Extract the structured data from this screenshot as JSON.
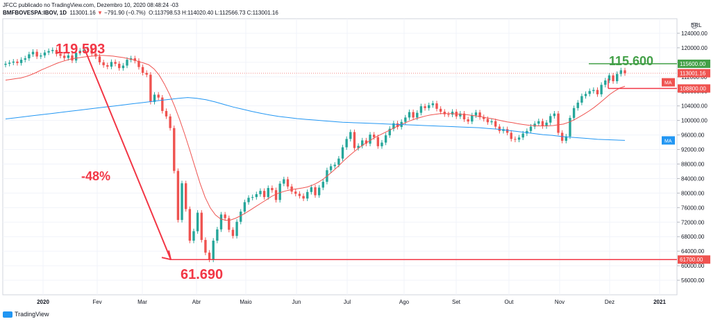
{
  "header": {
    "line1": "JFCC publicado no TradingView.com, Dezembro 10, 2020 08:48:24 -03",
    "symbol": "BMFBOVESPA:IBOV, 1D",
    "last": "113001.16",
    "change_arrow": "▼",
    "change": "−791.90 (−0.7%)",
    "ohlc": "O:113798.53 H:114020.40 L:112566.73 C:113001.16"
  },
  "brand": {
    "label": "TradingView"
  },
  "colors": {
    "up": "#26a69a",
    "down": "#ef5350",
    "ma_fast": "#ef5350",
    "ma_slow": "#2196f3",
    "annot_red": "#f23645",
    "annot_green": "#43a047"
  },
  "chart_data": {
    "type": "candlestick",
    "currency": "BRL",
    "y_ticks": [
      56000,
      60000,
      64000,
      68000,
      72000,
      76000,
      80000,
      84000,
      88000,
      92000,
      96000,
      100000,
      104000,
      108000,
      112000,
      116000,
      120000,
      124000
    ],
    "ylim": [
      52000,
      128000
    ],
    "x_labels": [
      "2020",
      "Fev",
      "Mar",
      "Abr",
      "Maio",
      "Jun",
      "Jul",
      "Ago",
      "Set",
      "Out",
      "Nov",
      "Dez",
      "2021"
    ],
    "price_tags": [
      {
        "label": "115600.00",
        "value": 115600,
        "color": "#43a047"
      },
      {
        "label": "113001.16",
        "value": 113001,
        "color": "#ef5350"
      },
      {
        "label": "108800.00",
        "value": 108800,
        "color": "#ef5350"
      },
      {
        "label": "61700.00",
        "value": 61700,
        "color": "#ef5350"
      }
    ],
    "ma_tags": [
      {
        "label": "MA",
        "value": 110500,
        "color": "#ef5350"
      },
      {
        "label": "MA",
        "value": 94500,
        "color": "#2196f3"
      }
    ],
    "annotations": {
      "high": "119.593",
      "low": "61.690",
      "drop": "-48%",
      "target": "115.600"
    },
    "closes": [
      115600,
      115900,
      116200,
      115800,
      116700,
      117100,
      118200,
      118900,
      117600,
      117900,
      118700,
      119100,
      119400,
      118300,
      117800,
      117200,
      117900,
      116500,
      118600,
      119200,
      119500,
      119600,
      118400,
      117600,
      116000,
      115200,
      114800,
      116100,
      115600,
      114400,
      115100,
      116700,
      117100,
      116400,
      114700,
      113100,
      112600,
      105100,
      107100,
      106300,
      102600,
      101100,
      97900,
      86100,
      72600,
      82700,
      75600,
      66900,
      69500,
      74600,
      67100,
      63600,
      61700,
      66900,
      70000,
      74100,
      73100,
      69900,
      68200,
      72100,
      74900,
      77500,
      78700,
      78900,
      79700,
      80600,
      78900,
      81400,
      80800,
      78100,
      82600,
      83800,
      81800,
      80400,
      79800,
      79200,
      78500,
      80300,
      81600,
      79400,
      81500,
      83100,
      86300,
      87400,
      87800,
      89500,
      92600,
      94900,
      96800,
      92400,
      93000,
      94500,
      93600,
      96100,
      95400,
      92900,
      93900,
      95900,
      97700,
      99200,
      98200,
      99600,
      100800,
      102300,
      100800,
      102100,
      103900,
      103400,
      104200,
      104700,
      103200,
      102400,
      101700,
      101600,
      102400,
      101100,
      101900,
      100300,
      99700,
      101400,
      102200,
      100900,
      100400,
      99500,
      99800,
      98300,
      97100,
      97600,
      96600,
      94900,
      94700,
      95300,
      96400,
      97100,
      98300,
      99100,
      99800,
      98400,
      99400,
      101200,
      101900,
      96600,
      94400,
      95600,
      100700,
      103400,
      104900,
      106700,
      107300,
      108100,
      108400,
      107200,
      109800,
      111000,
      112400,
      110800,
      112800,
      113800,
      113000
    ],
    "ma_fast": [
      111100,
      111300,
      111500,
      111700,
      112100,
      112600,
      113200,
      113900,
      114500,
      115100,
      115700,
      116200,
      116600,
      117000,
      117200,
      117400,
      117600,
      117700,
      117900,
      117900,
      117800,
      117700,
      117500,
      117300,
      117000,
      116700,
      116200,
      115800,
      115300,
      114200,
      112500,
      110100,
      107300,
      104000,
      100300,
      96200,
      91800,
      87200,
      82700,
      78800,
      75900,
      74000,
      72900,
      72500,
      72600,
      73100,
      73800,
      74600,
      75500,
      76400,
      77300,
      78200,
      79100,
      79800,
      80300,
      80700,
      81000,
      81200,
      81400,
      81700,
      82200,
      82900,
      83800,
      84900,
      86100,
      87400,
      88800,
      90100,
      91300,
      92400,
      93400,
      94300,
      95200,
      95900,
      96600,
      97300,
      98000,
      98700,
      99300,
      99900,
      100400,
      100800,
      101200,
      101500,
      101700,
      101900,
      101900,
      101900,
      101800,
      101700,
      101600,
      101400,
      101200,
      101000,
      100700,
      100500,
      100200,
      99900,
      99600,
      99400,
      99100,
      98900,
      98700,
      98600,
      98500,
      98500,
      98500,
      98600,
      98800,
      99000,
      99500,
      100100,
      100900,
      101700,
      102600,
      103600,
      104700,
      105900,
      107100,
      108100,
      108900,
      109400
    ],
    "ma_slow": [
      100400,
      100700,
      101000,
      101300,
      101600,
      101900,
      102200,
      102500,
      102800,
      103100,
      103400,
      103700,
      104000,
      104300,
      104600,
      104900,
      105200,
      105500,
      105800,
      106100,
      106300,
      106100,
      105700,
      105100,
      104400,
      103700,
      103100,
      102500,
      102000,
      101500,
      101100,
      100800,
      100500,
      100300,
      100100,
      99900,
      99700,
      99500,
      99400,
      99300,
      99200,
      99100,
      99000,
      98900,
      98800,
      98700,
      98600,
      98500,
      98400,
      98300,
      98200,
      98100,
      98000,
      97800,
      97600,
      97300,
      97000,
      96700,
      96400,
      96100,
      95900,
      95600,
      95400,
      95200,
      95000,
      94800,
      94700,
      94600,
      94500
    ]
  }
}
